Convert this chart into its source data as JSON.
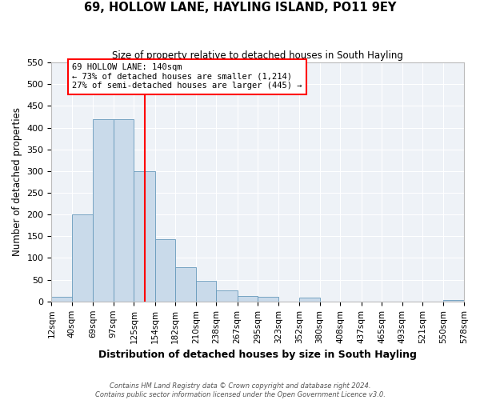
{
  "title": "69, HOLLOW LANE, HAYLING ISLAND, PO11 9EY",
  "subtitle": "Size of property relative to detached houses in South Hayling",
  "xlabel": "Distribution of detached houses by size in South Hayling",
  "ylabel": "Number of detached properties",
  "bar_color": "#c9daea",
  "bar_edge_color": "#6699bb",
  "plot_bg_color": "#eef2f7",
  "fig_bg_color": "#ffffff",
  "grid_color": "#ffffff",
  "bin_edges": [
    12,
    40,
    69,
    97,
    125,
    154,
    182,
    210,
    238,
    267,
    295,
    323,
    352,
    380,
    408,
    437,
    465,
    493,
    521,
    550,
    578
  ],
  "bin_labels": [
    "12sqm",
    "40sqm",
    "69sqm",
    "97sqm",
    "125sqm",
    "154sqm",
    "182sqm",
    "210sqm",
    "238sqm",
    "267sqm",
    "295sqm",
    "323sqm",
    "352sqm",
    "380sqm",
    "408sqm",
    "437sqm",
    "465sqm",
    "493sqm",
    "521sqm",
    "550sqm",
    "578sqm"
  ],
  "counts": [
    10,
    200,
    420,
    420,
    300,
    143,
    78,
    48,
    25,
    13,
    10,
    0,
    8,
    0,
    0,
    0,
    0,
    0,
    0,
    3
  ],
  "property_line_x": 140,
  "property_line_color": "red",
  "ylim": [
    0,
    550
  ],
  "yticks": [
    0,
    50,
    100,
    150,
    200,
    250,
    300,
    350,
    400,
    450,
    500,
    550
  ],
  "annotation_title": "69 HOLLOW LANE: 140sqm",
  "annotation_line1": "← 73% of detached houses are smaller (1,214)",
  "annotation_line2": "27% of semi-detached houses are larger (445) →",
  "footer1": "Contains HM Land Registry data © Crown copyright and database right 2024.",
  "footer2": "Contains public sector information licensed under the Open Government Licence v3.0."
}
